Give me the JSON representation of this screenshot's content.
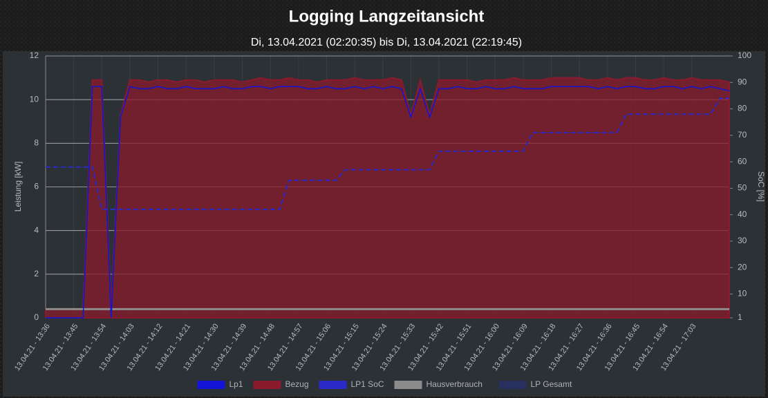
{
  "chart_data": {
    "type": "line",
    "title": "Logging Langzeitansicht",
    "subtitle": "Di, 13.04.2021 (02:20:35) bis Di, 13.04.2021 (22:19:45)",
    "y_label": "Leistung [kW]",
    "y2_label": "SoC [%]",
    "categories": [
      "13.04.21 - 13:36",
      null,
      null,
      "13.04.21 - 13:45",
      null,
      null,
      "13.04.21 - 13:54",
      null,
      null,
      "13.04.21 - 14:03",
      null,
      null,
      "13.04.21 - 14:12",
      null,
      null,
      "13.04.21 - 14:21",
      null,
      null,
      "13.04.21 - 14:30",
      null,
      null,
      "13.04.21 - 14:39",
      null,
      null,
      "13.04.21 - 14:48",
      null,
      null,
      "13.04.21 - 14:57",
      null,
      null,
      "13.04.21 - 15:06",
      null,
      null,
      "13.04.21 - 15:15",
      null,
      null,
      "13.04.21 - 15:24",
      null,
      null,
      "13.04.21 - 15:33",
      null,
      null,
      "13.04.21 - 15:42",
      null,
      null,
      "13.04.21 - 15:51",
      null,
      null,
      "13.04.21 - 16:00",
      null,
      null,
      "13.04.21 - 16:09",
      null,
      null,
      "13.04.21 - 16:18",
      null,
      null,
      "13.04.21 - 16:27",
      null,
      null,
      "13.04.21 - 16:36",
      null,
      null,
      "13.04.21 - 16:45",
      null,
      null,
      "13.04.21 - 16:54",
      null,
      null,
      "13.04.21 - 17:03",
      null,
      null,
      null,
      null
    ],
    "ylim": [
      0,
      12
    ],
    "yticks": [
      0,
      2,
      4,
      6,
      8,
      10,
      12
    ],
    "y2lim": [
      1,
      100
    ],
    "y2ticks": [
      1,
      10,
      20,
      30,
      40,
      50,
      60,
      70,
      80,
      90,
      100
    ],
    "grid": true,
    "series": [
      {
        "name": "Lp1",
        "color": "#1414d8",
        "values": [
          0,
          0,
          0,
          0,
          0,
          10.6,
          10.6,
          0,
          9.2,
          10.6,
          10.5,
          10.5,
          10.6,
          10.5,
          10.5,
          10.6,
          10.5,
          10.5,
          10.5,
          10.6,
          10.5,
          10.5,
          10.6,
          10.6,
          10.5,
          10.6,
          10.6,
          10.6,
          10.5,
          10.5,
          10.6,
          10.5,
          10.5,
          10.6,
          10.5,
          10.6,
          10.5,
          10.6,
          10.5,
          9.2,
          10.5,
          9.2,
          10.5,
          10.5,
          10.6,
          10.5,
          10.5,
          10.6,
          10.5,
          10.5,
          10.6,
          10.5,
          10.5,
          10.5,
          10.6,
          10.6,
          10.6,
          10.6,
          10.6,
          10.5,
          10.6,
          10.5,
          10.6,
          10.6,
          10.5,
          10.5,
          10.6,
          10.6,
          10.5,
          10.6,
          10.5,
          10.6,
          10.5,
          10.4
        ]
      },
      {
        "name": "Bezug",
        "color": "#8a1a2c",
        "fill": true,
        "values": [
          0.4,
          0.4,
          0.4,
          0.4,
          0.4,
          10.9,
          10.9,
          0.4,
          9.3,
          10.9,
          10.9,
          10.8,
          10.9,
          10.9,
          10.8,
          10.9,
          10.9,
          10.8,
          10.9,
          10.9,
          10.9,
          10.8,
          10.9,
          11.0,
          10.9,
          10.9,
          11.0,
          10.9,
          10.9,
          10.8,
          10.9,
          10.9,
          10.9,
          11.0,
          10.9,
          10.9,
          10.9,
          11.0,
          10.9,
          9.3,
          10.9,
          9.3,
          10.9,
          10.9,
          10.9,
          10.9,
          10.8,
          10.9,
          10.9,
          10.9,
          11.0,
          10.9,
          10.9,
          10.9,
          11.0,
          11.0,
          11.0,
          11.0,
          10.9,
          10.9,
          11.0,
          10.9,
          11.0,
          11.0,
          10.9,
          10.9,
          11.0,
          10.9,
          10.9,
          11.0,
          10.9,
          10.9,
          10.9,
          10.8
        ]
      },
      {
        "name": "LP1 SoC",
        "color": "#2a2ac8",
        "axis": "y2",
        "dashed": true,
        "values": [
          58,
          58,
          58,
          58,
          58,
          58,
          42,
          42,
          42,
          42,
          42,
          42,
          42,
          42,
          42,
          42,
          42,
          42,
          42,
          42,
          42,
          42,
          42,
          42,
          42,
          42,
          53,
          53,
          53,
          53,
          53,
          53,
          57,
          57,
          57,
          57,
          57,
          57,
          57,
          57,
          57,
          57,
          64,
          64,
          64,
          64,
          64,
          64,
          64,
          64,
          64,
          64,
          71,
          71,
          71,
          71,
          71,
          71,
          71,
          71,
          71,
          71,
          78,
          78,
          78,
          78,
          78,
          78,
          78,
          78,
          78,
          78,
          84,
          84
        ]
      },
      {
        "name": "Hausverbrauch",
        "color": "#8c8c8c",
        "values": [
          0.4,
          0.4,
          0.4,
          0.4,
          0.4,
          0.4,
          0.4,
          0.4,
          0.4,
          0.4,
          0.4,
          0.4,
          0.4,
          0.4,
          0.4,
          0.4,
          0.4,
          0.4,
          0.4,
          0.4,
          0.4,
          0.4,
          0.4,
          0.4,
          0.4,
          0.4,
          0.4,
          0.4,
          0.4,
          0.4,
          0.4,
          0.4,
          0.4,
          0.4,
          0.4,
          0.4,
          0.4,
          0.4,
          0.4,
          0.4,
          0.4,
          0.4,
          0.4,
          0.4,
          0.4,
          0.4,
          0.4,
          0.4,
          0.4,
          0.4,
          0.4,
          0.4,
          0.4,
          0.4,
          0.4,
          0.4,
          0.4,
          0.4,
          0.4,
          0.4,
          0.4,
          0.4,
          0.4,
          0.4,
          0.4,
          0.4,
          0.4,
          0.4,
          0.4,
          0.4,
          0.4,
          0.4,
          0.4,
          0.4
        ]
      },
      {
        "name": "LP Gesamt",
        "color": "#27305e",
        "values": [
          0,
          0,
          0,
          0,
          0,
          10.6,
          10.6,
          0,
          9.2,
          10.6,
          10.5,
          10.5,
          10.6,
          10.5,
          10.5,
          10.6,
          10.5,
          10.5,
          10.5,
          10.6,
          10.5,
          10.5,
          10.6,
          10.6,
          10.5,
          10.6,
          10.6,
          10.6,
          10.5,
          10.5,
          10.6,
          10.5,
          10.5,
          10.6,
          10.5,
          10.6,
          10.5,
          10.6,
          10.5,
          9.2,
          10.5,
          9.2,
          10.5,
          10.5,
          10.6,
          10.5,
          10.5,
          10.6,
          10.5,
          10.5,
          10.6,
          10.5,
          10.5,
          10.5,
          10.6,
          10.6,
          10.6,
          10.6,
          10.6,
          10.5,
          10.6,
          10.5,
          10.6,
          10.6,
          10.5,
          10.5,
          10.6,
          10.6,
          10.5,
          10.6,
          10.5,
          10.6,
          10.5,
          10.4
        ]
      }
    ]
  }
}
